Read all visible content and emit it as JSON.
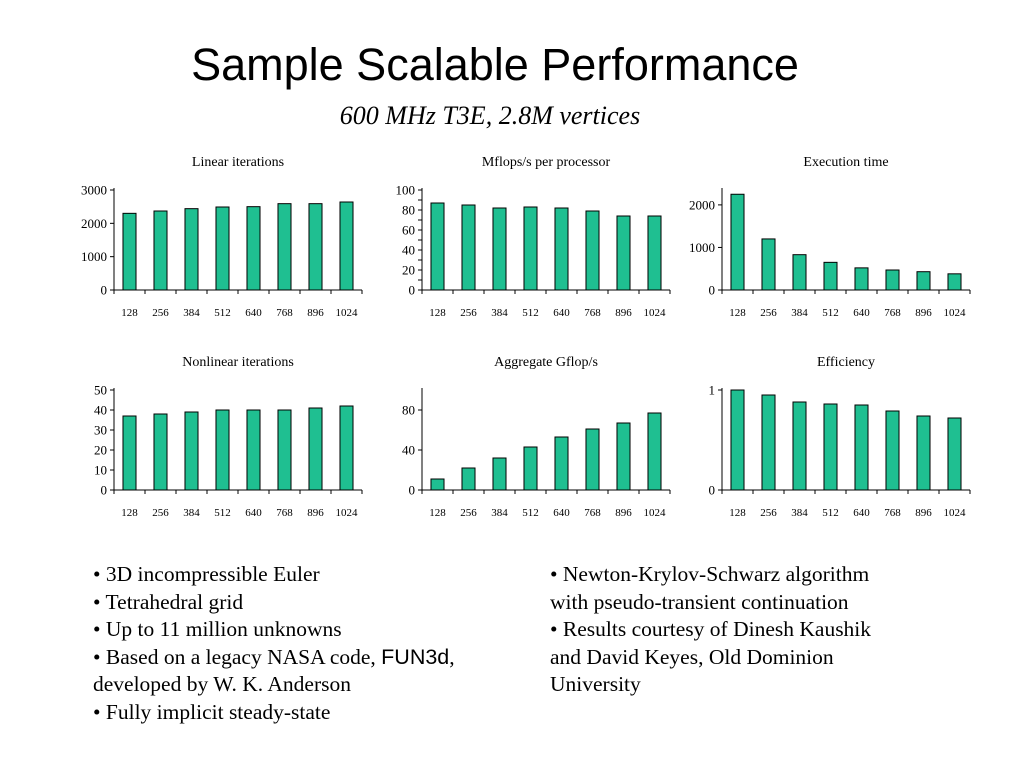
{
  "title": "Sample Scalable Performance",
  "subtitle": "600 MHz T3E, 2.8M vertices",
  "bar_color": "#1fbf91",
  "chart_data": [
    {
      "type": "bar",
      "title": "Linear iterations",
      "categories": [
        "128",
        "256",
        "384",
        "512",
        "640",
        "768",
        "896",
        "1024"
      ],
      "values": [
        2300,
        2370,
        2440,
        2490,
        2500,
        2590,
        2590,
        2640
      ],
      "ylim": [
        0,
        3000
      ],
      "yticks": [
        0,
        1000,
        2000,
        3000
      ],
      "xlabel": "",
      "ylabel": ""
    },
    {
      "type": "bar",
      "title": "Mflops/s per processor",
      "categories": [
        "128",
        "256",
        "384",
        "512",
        "640",
        "768",
        "896",
        "1024"
      ],
      "values": [
        87,
        85,
        82,
        83,
        82,
        79,
        74,
        74
      ],
      "ylim": [
        0,
        100
      ],
      "yticks": [
        0,
        10,
        20,
        30,
        40,
        50,
        60,
        70,
        80,
        90,
        100
      ],
      "ytick_labels": [
        "0",
        "",
        "20",
        "",
        "40",
        "",
        "60",
        "",
        "80",
        "",
        "100"
      ],
      "xlabel": "",
      "ylabel": ""
    },
    {
      "type": "bar",
      "title": "Execution time",
      "categories": [
        "128",
        "256",
        "384",
        "512",
        "640",
        "768",
        "896",
        "1024"
      ],
      "values": [
        2250,
        1200,
        830,
        650,
        520,
        470,
        430,
        380
      ],
      "ylim": [
        0,
        2350
      ],
      "yticks": [
        0,
        1000,
        2000
      ],
      "xlabel": "",
      "ylabel": ""
    },
    {
      "type": "bar",
      "title": "Nonlinear iterations",
      "categories": [
        "128",
        "256",
        "384",
        "512",
        "640",
        "768",
        "896",
        "1024"
      ],
      "values": [
        37,
        38,
        39,
        40,
        40,
        40,
        41,
        42
      ],
      "ylim": [
        0,
        50
      ],
      "yticks": [
        0,
        10,
        20,
        30,
        40,
        50
      ],
      "xlabel": "",
      "ylabel": ""
    },
    {
      "type": "bar",
      "title": "Aggregate Gflop/s",
      "categories": [
        "128",
        "256",
        "384",
        "512",
        "640",
        "768",
        "896",
        "1024"
      ],
      "values": [
        11,
        22,
        32,
        43,
        53,
        61,
        67,
        77
      ],
      "ylim": [
        0,
        100
      ],
      "yticks": [
        0,
        40,
        80
      ],
      "xlabel": "",
      "ylabel": ""
    },
    {
      "type": "bar",
      "title": "Efficiency",
      "categories": [
        "128",
        "256",
        "384",
        "512",
        "640",
        "768",
        "896",
        "1024"
      ],
      "values": [
        1.0,
        0.95,
        0.88,
        0.86,
        0.85,
        0.79,
        0.74,
        0.72
      ],
      "ylim": [
        0,
        1.0
      ],
      "yticks": [
        0,
        1
      ],
      "xlabel": "",
      "ylabel": ""
    }
  ],
  "bullets_left": {
    "b1": "• 3D incompressible Euler",
    "b2": "• Tetrahedral grid",
    "b3": "• Up to 11 million unknowns",
    "b4_prefix": "• Based on a legacy NASA code, ",
    "b4_code": "FUN3d",
    "b4_suffix": ",",
    "b4_line2": "developed by W. K. Anderson",
    "b5": "• Fully implicit steady-state"
  },
  "bullets_right": {
    "r1": "•  Newton-Krylov-Schwarz algorithm",
    "r1_line2": "with pseudo-transient continuation",
    "r2": "• Results courtesy of Dinesh Kaushik",
    "r2_line2": "and David Keyes, Old Dominion",
    "r2_line3": "University"
  }
}
